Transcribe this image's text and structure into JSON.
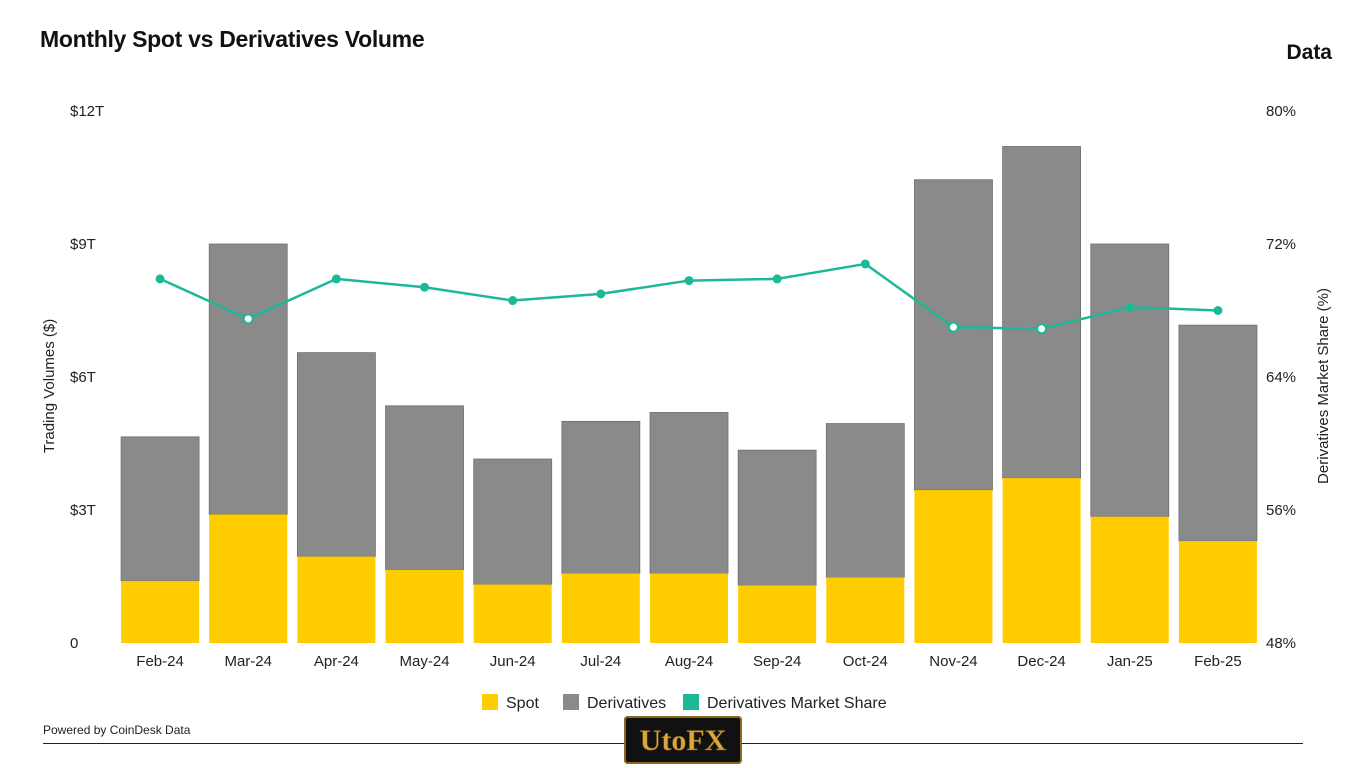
{
  "header": {
    "title": "Monthly Spot vs Derivatives Volume",
    "brand": "Data"
  },
  "footer": {
    "powered_by": "Powered by CoinDesk Data",
    "watermark": "UtoFX"
  },
  "colors": {
    "spot": "#FFCC00",
    "derivatives": "#8A8A8A",
    "share": "#1DB898",
    "text": "#111111"
  },
  "chart_data": {
    "type": "bar",
    "stacked": true,
    "title": "Monthly Spot vs Derivatives Volume",
    "xlabel": "",
    "ylabel": "Trading Volumes ($)",
    "y2label": "Derivatives Market Share (%)",
    "ylim": [
      0,
      12
    ],
    "y2lim": [
      48,
      80
    ],
    "yticks": [
      "0",
      "$3T",
      "$6T",
      "$9T",
      "$12T"
    ],
    "y2ticks": [
      "48%",
      "56%",
      "64%",
      "72%",
      "80%"
    ],
    "grid": false,
    "legend_position": "bottom-center",
    "categories": [
      "Feb-24",
      "Mar-24",
      "Apr-24",
      "May-24",
      "Jun-24",
      "Jul-24",
      "Aug-24",
      "Sep-24",
      "Oct-24",
      "Nov-24",
      "Dec-24",
      "Jan-25",
      "Feb-25"
    ],
    "series": [
      {
        "name": "Spot",
        "kind": "bar",
        "axis": "left",
        "values": [
          1.4,
          2.9,
          1.95,
          1.65,
          1.32,
          1.57,
          1.57,
          1.3,
          1.48,
          3.45,
          3.72,
          2.85,
          2.3
        ]
      },
      {
        "name": "Derivatives",
        "kind": "bar",
        "axis": "left",
        "values": [
          3.25,
          6.1,
          4.6,
          3.7,
          2.83,
          3.43,
          3.63,
          3.05,
          3.47,
          7.0,
          7.48,
          6.15,
          4.87
        ]
      },
      {
        "name": "Derivatives Market Share",
        "kind": "line",
        "axis": "right",
        "values": [
          69.9,
          67.5,
          69.9,
          69.4,
          68.6,
          69.0,
          69.8,
          69.9,
          70.8,
          67.0,
          66.9,
          68.2,
          68.0
        ]
      }
    ]
  }
}
